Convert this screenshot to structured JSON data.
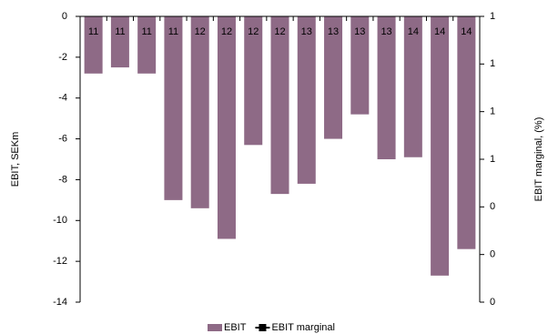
{
  "chart_data": {
    "type": "bar",
    "categories": [
      "11",
      "11",
      "11",
      "11",
      "12",
      "12",
      "12",
      "12",
      "13",
      "13",
      "13",
      "13",
      "14",
      "14",
      "14"
    ],
    "series": [
      {
        "name": "EBIT",
        "color": "#8e6a86",
        "values": [
          -2.8,
          -2.5,
          -2.8,
          -9.0,
          -9.4,
          -10.9,
          -6.3,
          -8.7,
          -8.2,
          -6.0,
          -4.8,
          -7.0,
          -6.9,
          -12.7,
          -11.4
        ]
      },
      {
        "name": "EBIT marginal",
        "color": "#000000",
        "axis": "y2",
        "values": [
          null,
          null,
          null,
          null,
          null,
          null,
          null,
          null,
          null,
          null,
          null,
          null,
          null,
          null,
          null
        ]
      }
    ],
    "ylabel": "EBIT, SEKm",
    "y2label": "EBIT marginal, (%)",
    "ylim": [
      -14,
      0
    ],
    "yticks": [
      0,
      -2,
      -4,
      -6,
      -8,
      -10,
      -12,
      -14
    ],
    "y2lim": [
      0,
      1.2
    ],
    "y2ticks": [
      {
        "value": 1.2,
        "label": "1"
      },
      {
        "value": 1.0,
        "label": "1"
      },
      {
        "value": 0.8,
        "label": "1"
      },
      {
        "value": 0.6,
        "label": "1"
      },
      {
        "value": 0.4,
        "label": "0"
      },
      {
        "value": 0.2,
        "label": "0"
      },
      {
        "value": 0.0,
        "label": "0"
      }
    ],
    "legend": "bottom"
  }
}
